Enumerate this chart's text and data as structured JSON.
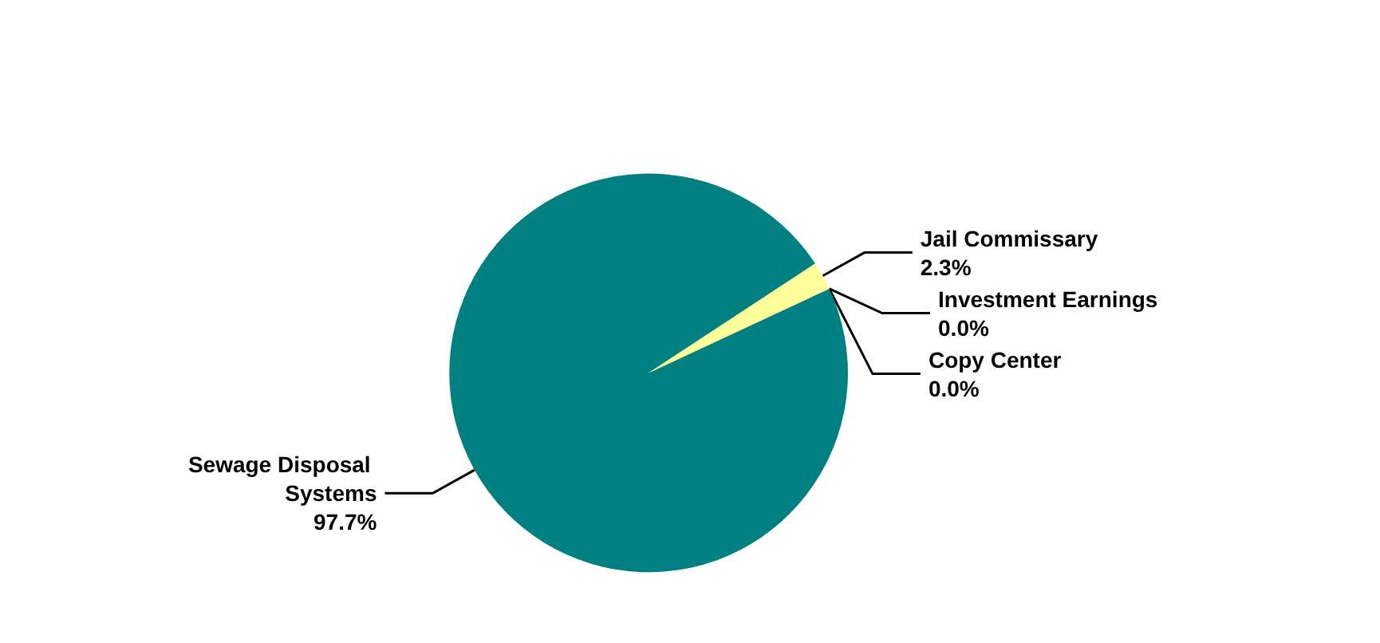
{
  "chart_data": {
    "type": "pie",
    "categories": [
      "Sewage Disposal Systems",
      "Jail Commissary",
      "Investment Earnings",
      "Copy Center"
    ],
    "values": [
      97.7,
      2.3,
      0,
      0
    ],
    "colors": [
      "#008080",
      "#ffff99",
      "#9999ff",
      "#993366"
    ],
    "value_labels": [
      "97.7%",
      "2.3%",
      "0.0%",
      "0.0%"
    ]
  }
}
